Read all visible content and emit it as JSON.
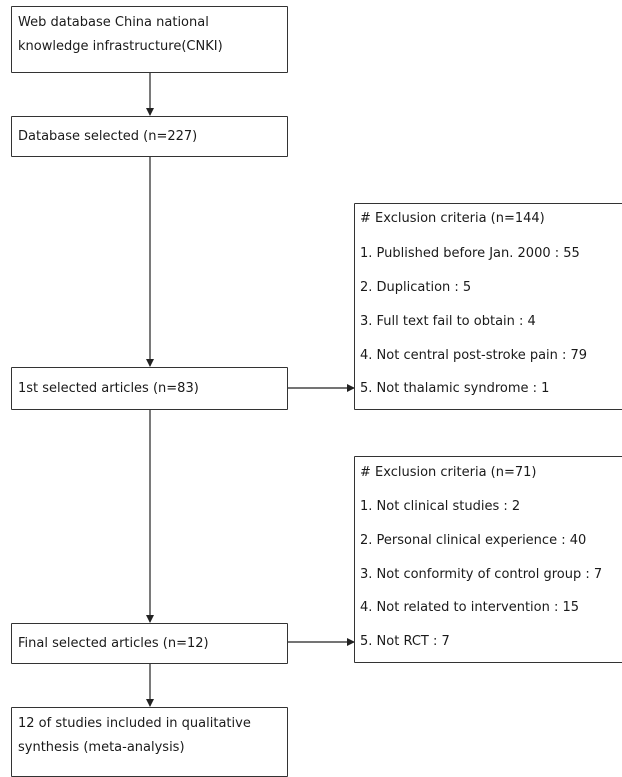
{
  "boxes": {
    "source": {
      "lines": [
        "Web database China national",
        "knowledge infrastructure(CNKI)"
      ]
    },
    "database_selected": {
      "label": "Database selected (n=227)"
    },
    "first_selected": {
      "label": "1st selected articles (n=83)"
    },
    "final_selected": {
      "label": "Final selected articles (n=12)"
    },
    "included": {
      "lines": [
        "12 of studies included in qualitative",
        "synthesis (meta-analysis)"
      ]
    }
  },
  "exclusions": [
    {
      "title": "# Exclusion criteria (n=144)",
      "items": [
        "1. Published before Jan. 2000 : 55",
        "2. Duplication : 5",
        "3. Full text fail to obtain : 4",
        "4. Not central post-stroke pain : 79",
        "5. Not thalamic syndrome : 1"
      ]
    },
    {
      "title": "# Exclusion criteria (n=71)",
      "items": [
        "1. Not clinical studies : 2",
        "2. Personal clinical experience : 40",
        "3. Not conformity of control group : 7",
        "4. Not related to intervention : 15",
        "5. Not RCT : 7"
      ]
    }
  ]
}
